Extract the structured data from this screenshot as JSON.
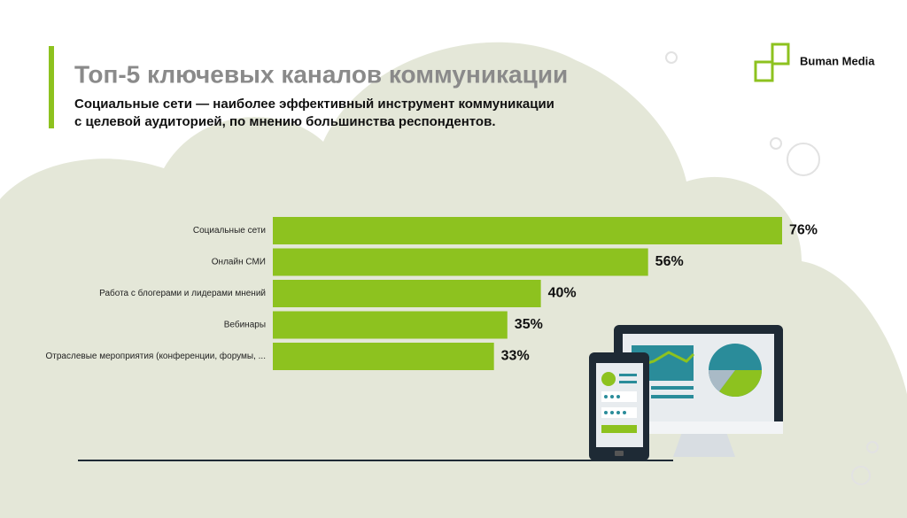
{
  "brand": "Buman Media",
  "chart_data": {
    "type": "bar",
    "orientation": "horizontal",
    "title": "Топ-5 ключевых каналов коммуникации",
    "subtitle": [
      "Социальные сети — наиболее эффективный инструмент коммуникации",
      "с целевой аудиторией, по мнению большинства респондентов."
    ],
    "categories": [
      "Социальные сети",
      "Онлайн СМИ",
      "Работа с блогерами и лидерами мнений",
      "Вебинары",
      "Отраслевые мероприятия (конференции, форумы, ..."
    ],
    "values": [
      76,
      56,
      40,
      35,
      33
    ],
    "value_labels": [
      "76%",
      "56%",
      "40%",
      "35%",
      "33%"
    ],
    "color": "#8dc21f"
  }
}
